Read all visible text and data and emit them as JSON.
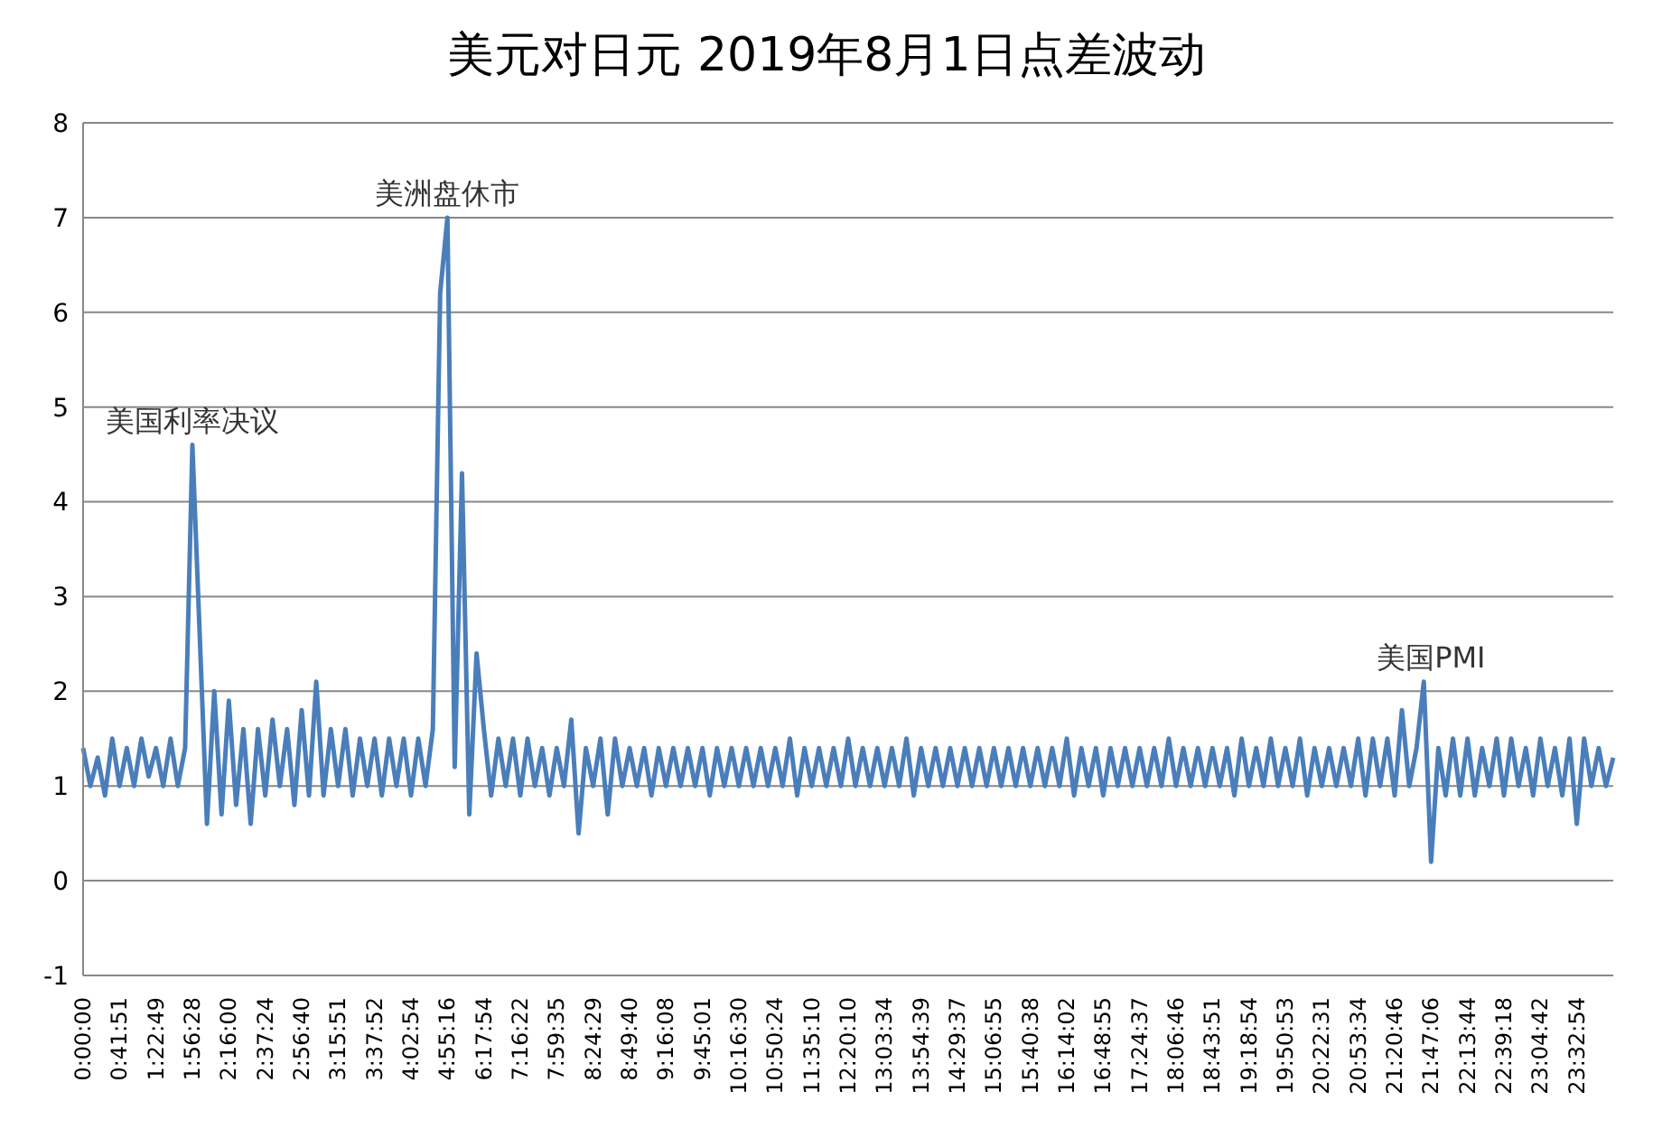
{
  "chart_data": {
    "type": "line",
    "title": "美元对日元 2019年8月1日点差波动",
    "categories": [
      "0:00:00",
      null,
      null,
      null,
      null,
      "0:41:51",
      null,
      null,
      null,
      null,
      "1:22:49",
      null,
      null,
      null,
      null,
      "1:56:28",
      null,
      null,
      null,
      null,
      "2:16:00",
      null,
      null,
      null,
      null,
      "2:37:24",
      null,
      null,
      null,
      null,
      "2:56:40",
      null,
      null,
      null,
      null,
      "3:15:51",
      null,
      null,
      null,
      null,
      "3:37:52",
      null,
      null,
      null,
      null,
      "4:02:54",
      null,
      null,
      null,
      null,
      "4:55:16",
      null,
      null,
      null,
      null,
      "6:17:54",
      null,
      null,
      null,
      null,
      "7:16:22",
      null,
      null,
      null,
      null,
      "7:59:35",
      null,
      null,
      null,
      null,
      "8:24:29",
      null,
      null,
      null,
      null,
      "8:49:40",
      null,
      null,
      null,
      null,
      "9:16:08",
      null,
      null,
      null,
      null,
      "9:45:01",
      null,
      null,
      null,
      null,
      "10:16:30",
      null,
      null,
      null,
      null,
      "10:50:24",
      null,
      null,
      null,
      null,
      "11:35:10",
      null,
      null,
      null,
      null,
      "12:20:10",
      null,
      null,
      null,
      null,
      "13:03:34",
      null,
      null,
      null,
      null,
      "13:54:39",
      null,
      null,
      null,
      null,
      "14:29:37",
      null,
      null,
      null,
      null,
      "15:06:55",
      null,
      null,
      null,
      null,
      "15:40:38",
      null,
      null,
      null,
      null,
      "16:14:02",
      null,
      null,
      null,
      null,
      "16:48:55",
      null,
      null,
      null,
      null,
      "17:24:37",
      null,
      null,
      null,
      null,
      "18:06:46",
      null,
      null,
      null,
      null,
      "18:43:51",
      null,
      null,
      null,
      null,
      "19:18:54",
      null,
      null,
      null,
      null,
      "19:50:53",
      null,
      null,
      null,
      null,
      "20:22:31",
      null,
      null,
      null,
      null,
      "20:53:34",
      null,
      null,
      null,
      null,
      "21:20:46",
      null,
      null,
      null,
      null,
      "21:47:06",
      null,
      null,
      null,
      null,
      "22:13:44",
      null,
      null,
      null,
      null,
      "22:39:18",
      null,
      null,
      null,
      null,
      "23:04:42",
      null,
      null,
      null,
      null,
      "23:32:54",
      null,
      null,
      null,
      null,
      null
    ],
    "series": [
      {
        "color": "#4a7ebb",
        "values": [
          1.4,
          1.0,
          1.3,
          0.9,
          1.5,
          1.0,
          1.4,
          1.0,
          1.5,
          1.1,
          1.4,
          1.0,
          1.5,
          1.0,
          1.4,
          4.6,
          2.6,
          0.6,
          2.0,
          0.7,
          1.9,
          0.8,
          1.6,
          0.6,
          1.6,
          0.9,
          1.7,
          1.0,
          1.6,
          0.8,
          1.8,
          0.9,
          2.1,
          0.9,
          1.6,
          1.0,
          1.6,
          0.9,
          1.5,
          1.0,
          1.5,
          0.9,
          1.5,
          1.0,
          1.5,
          0.9,
          1.5,
          1.0,
          1.6,
          6.2,
          7.0,
          1.2,
          4.3,
          0.7,
          2.4,
          1.6,
          0.9,
          1.5,
          1.0,
          1.5,
          0.9,
          1.5,
          1.0,
          1.4,
          0.9,
          1.4,
          1.0,
          1.7,
          0.5,
          1.4,
          1.0,
          1.5,
          0.7,
          1.5,
          1.0,
          1.4,
          1.0,
          1.4,
          0.9,
          1.4,
          1.0,
          1.4,
          1.0,
          1.4,
          1.0,
          1.4,
          0.9,
          1.4,
          1.0,
          1.4,
          1.0,
          1.4,
          1.0,
          1.4,
          1.0,
          1.4,
          1.0,
          1.5,
          0.9,
          1.4,
          1.0,
          1.4,
          1.0,
          1.4,
          1.0,
          1.5,
          1.0,
          1.4,
          1.0,
          1.4,
          1.0,
          1.4,
          1.0,
          1.5,
          0.9,
          1.4,
          1.0,
          1.4,
          1.0,
          1.4,
          1.0,
          1.4,
          1.0,
          1.4,
          1.0,
          1.4,
          1.0,
          1.4,
          1.0,
          1.4,
          1.0,
          1.4,
          1.0,
          1.4,
          1.0,
          1.5,
          0.9,
          1.4,
          1.0,
          1.4,
          0.9,
          1.4,
          1.0,
          1.4,
          1.0,
          1.4,
          1.0,
          1.4,
          1.0,
          1.5,
          1.0,
          1.4,
          1.0,
          1.4,
          1.0,
          1.4,
          1.0,
          1.4,
          0.9,
          1.5,
          1.0,
          1.4,
          1.0,
          1.5,
          1.0,
          1.4,
          1.0,
          1.5,
          0.9,
          1.4,
          1.0,
          1.4,
          1.0,
          1.4,
          1.0,
          1.5,
          0.9,
          1.5,
          1.0,
          1.5,
          0.9,
          1.8,
          1.0,
          1.4,
          2.1,
          0.2,
          1.4,
          0.9,
          1.5,
          0.9,
          1.5,
          0.9,
          1.4,
          1.0,
          1.5,
          0.9,
          1.5,
          1.0,
          1.4,
          0.9,
          1.5,
          1.0,
          1.4,
          0.9,
          1.5,
          0.6,
          1.5,
          1.0,
          1.4,
          1.0,
          1.3
        ]
      }
    ],
    "ylim": [
      -1,
      8
    ],
    "yticks": [
      -1,
      0,
      1,
      2,
      3,
      4,
      5,
      6,
      7,
      8
    ],
    "grid": "y",
    "legend": false,
    "marker": "none",
    "line_style": "solid",
    "annotations": [
      {
        "text": "美国利率决议",
        "x": "1:56:28",
        "y": 4.6
      },
      {
        "text": "美洲盘休市",
        "x": "4:55:16",
        "y": 7.0
      },
      {
        "text": "美国PMI",
        "x": "21:47:06",
        "y": 2.1
      }
    ]
  }
}
